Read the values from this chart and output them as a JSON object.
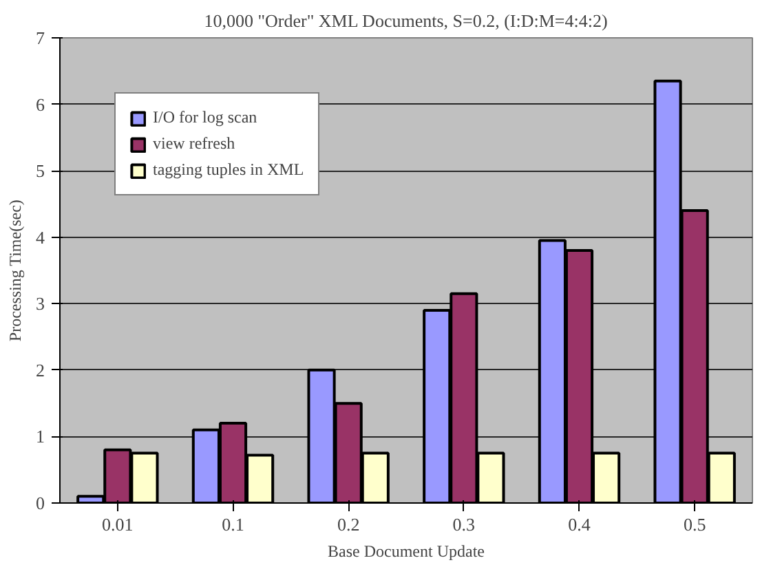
{
  "chart_data": {
    "type": "bar",
    "title": "10,000 \"Order\" XML Documents, S=0.2, (I:D:M=4:4:2)",
    "xlabel": "Base Document Update",
    "ylabel": "Processing Time(sec)",
    "categories": [
      "0.01",
      "0.1",
      "0.2",
      "0.3",
      "0.4",
      "0.5"
    ],
    "series": [
      {
        "name": "I/O for log scan",
        "color": "#9999ff",
        "values": [
          0.1,
          1.1,
          2.0,
          2.9,
          3.95,
          6.35
        ]
      },
      {
        "name": "view refresh",
        "color": "#993366",
        "values": [
          0.8,
          1.2,
          1.5,
          3.15,
          3.8,
          4.4
        ]
      },
      {
        "name": "tagging tuples in XML",
        "color": "#ffffcc",
        "values": [
          0.75,
          0.72,
          0.75,
          0.75,
          0.75,
          0.75
        ]
      }
    ],
    "ylim": [
      0,
      7
    ],
    "yticks": [
      0,
      1,
      2,
      3,
      4,
      5,
      6,
      7
    ],
    "grid": "y",
    "legend": "top left"
  }
}
